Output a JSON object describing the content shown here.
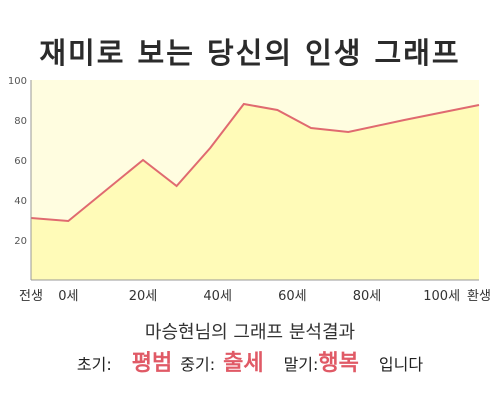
{
  "title": "재미로 보는 당신의 인생 그래프",
  "summary": "마승현님의 그래프 분석결과",
  "results": {
    "early_label": "초기:",
    "early_value": "평범",
    "mid_label": "중기:",
    "mid_value": "출세",
    "late_label": "말기:",
    "late_value": "행복",
    "ending": "입니다"
  },
  "colors": {
    "line": "#e06a70",
    "fill": "#fffbb8",
    "plot_bg": "#fffde0",
    "highlight": "#e05a66"
  },
  "chart_data": {
    "type": "area",
    "title": "재미로 보는 당신의 인생 그래프",
    "xlabel": "",
    "ylabel": "",
    "ylim": [
      0,
      100
    ],
    "xlim": [
      -10,
      110
    ],
    "y_ticks": [
      20,
      40,
      60,
      80,
      100
    ],
    "x_ticks": [
      {
        "value": -10,
        "label": "전생"
      },
      {
        "value": 0,
        "label": "0세"
      },
      {
        "value": 20,
        "label": "20세"
      },
      {
        "value": 40,
        "label": "40세"
      },
      {
        "value": 60,
        "label": "60세"
      },
      {
        "value": 80,
        "label": "80세"
      },
      {
        "value": 100,
        "label": "100세"
      },
      {
        "value": 110,
        "label": "환생"
      }
    ],
    "grid": false,
    "x": [
      -10,
      0,
      20,
      29,
      38,
      47,
      56,
      65,
      75,
      90,
      110
    ],
    "values": [
      31,
      29.5,
      60,
      47,
      66,
      88,
      85,
      76,
      74,
      80,
      87.5
    ]
  }
}
